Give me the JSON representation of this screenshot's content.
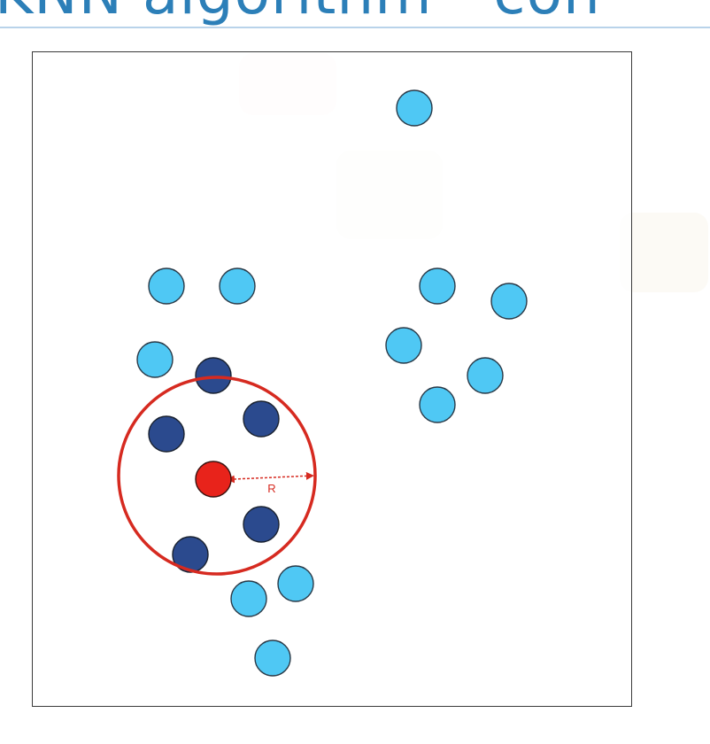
{
  "slide": {
    "title_fragment": "KNN algorithm - con"
  },
  "diagram": {
    "radius_label": "R",
    "colors": {
      "other_points": "#4fc8f4",
      "neighbor_points": "#2b4a8e",
      "query_point": "#e8231b",
      "radius_circle": "#d62a20"
    }
  }
}
